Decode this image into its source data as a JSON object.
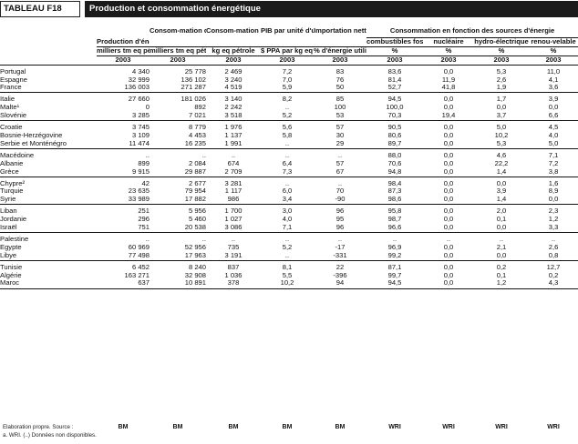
{
  "header": {
    "label": "TABLEAU F18",
    "title": "Production et consommation énergétique"
  },
  "columns": [
    {
      "title": "Production d'énergie",
      "unit": "milliers tm eq pétrole",
      "year": "2003"
    },
    {
      "title": "Consom-mation d'énergie",
      "unit": "milliers tm eq pétrole",
      "year": "2003"
    },
    {
      "title": "Consom-mation d'énergie par habitant",
      "unit": "kg eq pétrole",
      "year": "2003"
    },
    {
      "title": "PIB par unité d'usage d'énergie",
      "unit": "$ PPA par kg eq pétrole",
      "year": "2003"
    },
    {
      "title": "Importation nette d'énergie",
      "unit": "% d'énergie utilisée",
      "year": "2003"
    },
    {
      "title": "combustibles fossiles",
      "unit": "%",
      "year": "2003"
    },
    {
      "title": "nucléaire",
      "unit": "%",
      "year": "2003"
    },
    {
      "title": "hydro-électrique",
      "unit": "%",
      "year": "2003"
    },
    {
      "title": "renou-velable",
      "unit": "%",
      "year": "2003"
    }
  ],
  "group_header": "Consommation en fonction des sources d'énergie",
  "groups": [
    [
      [
        "Portugal",
        "4 340",
        "25 778",
        "2 469",
        "7,2",
        "83",
        "83,6",
        "0,0",
        "5,3",
        "11,0"
      ],
      [
        "Espagne",
        "32 999",
        "136 102",
        "3 240",
        "7,0",
        "76",
        "81,4",
        "11,9",
        "2,6",
        "4,1"
      ],
      [
        "France",
        "136 003",
        "271 287",
        "4 519",
        "5,9",
        "50",
        "52,7",
        "41,8",
        "1,9",
        "3,6"
      ]
    ],
    [
      [
        "Italie",
        "27 660",
        "181 026",
        "3 140",
        "8,2",
        "85",
        "94,5",
        "0,0",
        "1,7",
        "3,9"
      ],
      [
        "Malte¹",
        "0",
        "892",
        "2 242",
        "..",
        "100",
        "100,0",
        "0,0",
        "0,0",
        "0,0"
      ],
      [
        "Slovénie",
        "3 285",
        "7 021",
        "3 518",
        "5,2",
        "53",
        "70,3",
        "19,4",
        "3,7",
        "6,6"
      ]
    ],
    [
      [
        "Croatie",
        "3 745",
        "8 779",
        "1 976",
        "5,6",
        "57",
        "90,5",
        "0,0",
        "5,0",
        "4,5"
      ],
      [
        "Bosnie-Herzégovine",
        "3 109",
        "4 453",
        "1 137",
        "5,8",
        "30",
        "80,6",
        "0,0",
        "10,2",
        "4,0"
      ],
      [
        "Serbie et Monténégro",
        "11 474",
        "16 235",
        "1 991",
        "..",
        "29",
        "89,7",
        "0,0",
        "5,3",
        "5,0"
      ]
    ],
    [
      [
        "Macédoine",
        "..",
        "..",
        "..",
        "..",
        "..",
        "88,0",
        "0,0",
        "4,6",
        "7,1"
      ],
      [
        "Albanie",
        "899",
        "2 084",
        "674",
        "6,4",
        "57",
        "70,6",
        "0,0",
        "22,2",
        "7,2"
      ],
      [
        "Grèce",
        "9 915",
        "29 887",
        "2 709",
        "7,3",
        "67",
        "94,8",
        "0,0",
        "1,4",
        "3,8"
      ]
    ],
    [
      [
        "Chypre²",
        "42",
        "2 677",
        "3 281",
        "..",
        "..",
        "98,4",
        "0,0",
        "0,0",
        "1,6"
      ],
      [
        "Turquie",
        "23 635",
        "79 954",
        "1 117",
        "6,0",
        "70",
        "87,3",
        "0,0",
        "3,9",
        "8,9"
      ],
      [
        "Syrie",
        "33 989",
        "17 882",
        "986",
        "3,4",
        "-90",
        "98,6",
        "0,0",
        "1,4",
        "0,0"
      ]
    ],
    [
      [
        "Liban",
        "251",
        "5 956",
        "1 700",
        "3,0",
        "96",
        "95,8",
        "0,0",
        "2,0",
        "2,3"
      ],
      [
        "Jordanie",
        "296",
        "5 460",
        "1 027",
        "4,0",
        "95",
        "98,7",
        "0,0",
        "0,1",
        "1,2"
      ],
      [
        "Israël",
        "751",
        "20 538",
        "3 086",
        "7,1",
        "96",
        "96,6",
        "0,0",
        "0,0",
        "3,3"
      ]
    ],
    [
      [
        "Palestine",
        "..",
        "..",
        "..",
        "..",
        "..",
        "..",
        "..",
        "..",
        ".."
      ],
      [
        "Egypte",
        "60 969",
        "52 956",
        "735",
        "5,2",
        "-17",
        "96,9",
        "0,0",
        "2,1",
        "2,6"
      ],
      [
        "Libye",
        "77 498",
        "17 963",
        "3 191",
        "..",
        "-331",
        "99,2",
        "0,0",
        "0,0",
        "0,8"
      ]
    ],
    [
      [
        "Tunisie",
        "6 452",
        "8 240",
        "837",
        "8,1",
        "22",
        "87,1",
        "0,0",
        "0,2",
        "12,7"
      ],
      [
        "Algérie",
        "163 271",
        "32 908",
        "1 036",
        "5,5",
        "-396",
        "99,7",
        "0,0",
        "0,1",
        "0,2"
      ],
      [
        "Maroc",
        "637",
        "10 891",
        "378",
        "10,2",
        "94",
        "94,5",
        "0,0",
        "1,2",
        "4,3"
      ]
    ]
  ],
  "footer": {
    "source_label": "Elaboration propre. Source :",
    "note": "a. WRI. (..) Données non disponibles.",
    "sources": [
      "BM",
      "BM",
      "BM",
      "BM",
      "BM",
      "WRI",
      "WRI",
      "WRI",
      "WRI"
    ]
  }
}
